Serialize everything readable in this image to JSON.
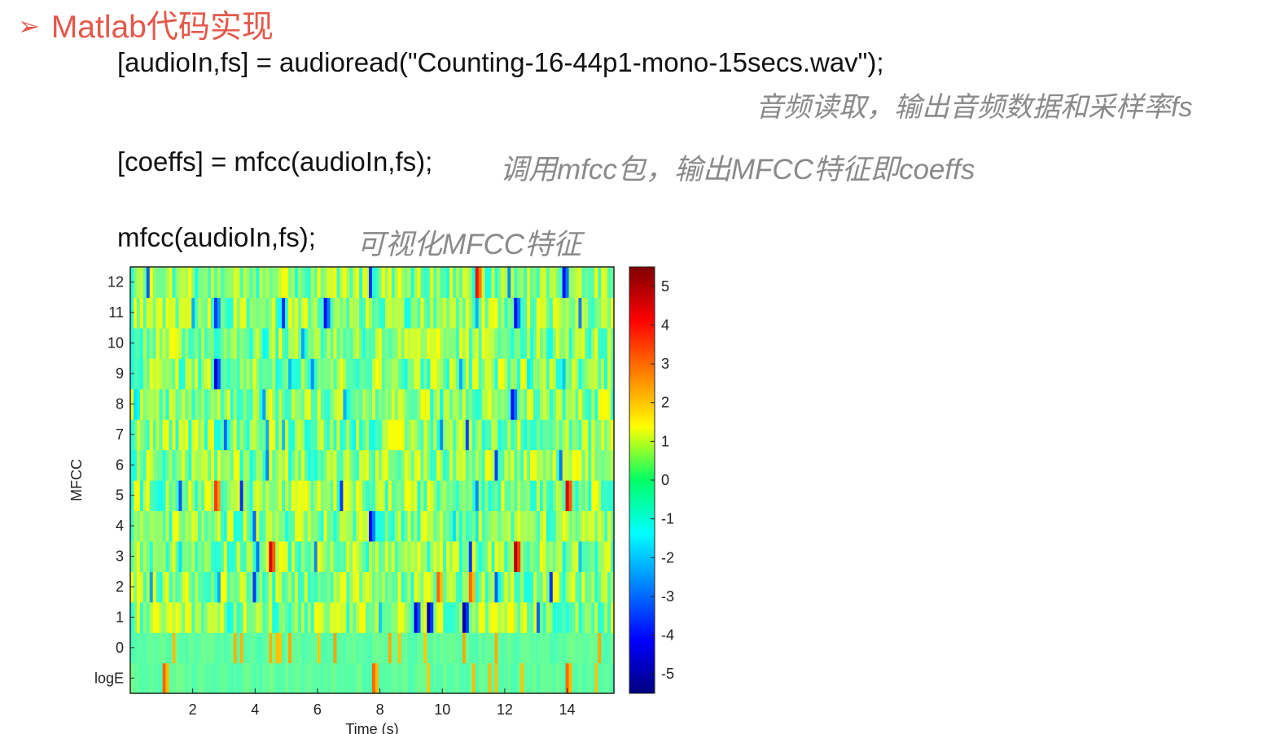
{
  "heading": {
    "arrow": "➢",
    "text": "Matlab代码实现"
  },
  "code_lines": [
    {
      "code": "[audioIn,fs] = audioread(\"Counting-16-44p1-mono-15secs.wav\");",
      "comment": "音频读取，输出音频数据和采样率fs"
    },
    {
      "code": "[coeffs] = mfcc(audioIn,fs);",
      "comment": "调用mfcc包，输出MFCC特征即coeffs"
    },
    {
      "code": "mfcc(audioIn,fs);",
      "comment": "可视化MFCC特征"
    }
  ],
  "chart_data": {
    "type": "heatmap",
    "colormap": "jet",
    "xlabel": "Time (s)",
    "ylabel": "MFCC",
    "xlim": [
      0,
      15.5
    ],
    "x_ticks": [
      2,
      4,
      6,
      8,
      10,
      12,
      14
    ],
    "y_categories": [
      "logE",
      "0",
      "1",
      "2",
      "3",
      "4",
      "5",
      "6",
      "7",
      "8",
      "9",
      "10",
      "11",
      "12"
    ],
    "colorbar": {
      "range": [
        -5.5,
        5.5
      ],
      "ticks": [
        5,
        4,
        3,
        2,
        1,
        0,
        -1,
        -2,
        -3,
        -4,
        -5
      ]
    },
    "highlights": [
      {
        "row": "3",
        "t": 4.4,
        "value": 4.5
      },
      {
        "row": "3",
        "t": 12.3,
        "value": 5
      },
      {
        "row": "5",
        "t": 13.9,
        "value": 4.5
      },
      {
        "row": "5",
        "t": 2.7,
        "value": 3.5
      },
      {
        "row": "12",
        "t": 11.1,
        "value": 4
      },
      {
        "row": "12",
        "t": 13.8,
        "value": -4
      },
      {
        "row": "1",
        "t": 9.1,
        "value": -4.5
      },
      {
        "row": "1",
        "t": 9.5,
        "value": -5
      },
      {
        "row": "1",
        "t": 10.6,
        "value": -5
      },
      {
        "row": "9",
        "t": 2.7,
        "value": -4.5
      },
      {
        "row": "11",
        "t": 2.7,
        "value": -3.5
      },
      {
        "row": "11",
        "t": 6.2,
        "value": -4
      },
      {
        "row": "11",
        "t": 12.3,
        "value": -4
      },
      {
        "row": "8",
        "t": 12.2,
        "value": -4
      },
      {
        "row": "4",
        "t": 7.6,
        "value": -4
      },
      {
        "row": "2",
        "t": 9.8,
        "value": 3
      },
      {
        "row": "2",
        "t": 10.9,
        "value": 3
      },
      {
        "row": "logE",
        "t": 1.0,
        "value": 3
      },
      {
        "row": "logE",
        "t": 7.8,
        "value": 3
      },
      {
        "row": "logE",
        "t": 13.9,
        "value": 3
      }
    ]
  }
}
